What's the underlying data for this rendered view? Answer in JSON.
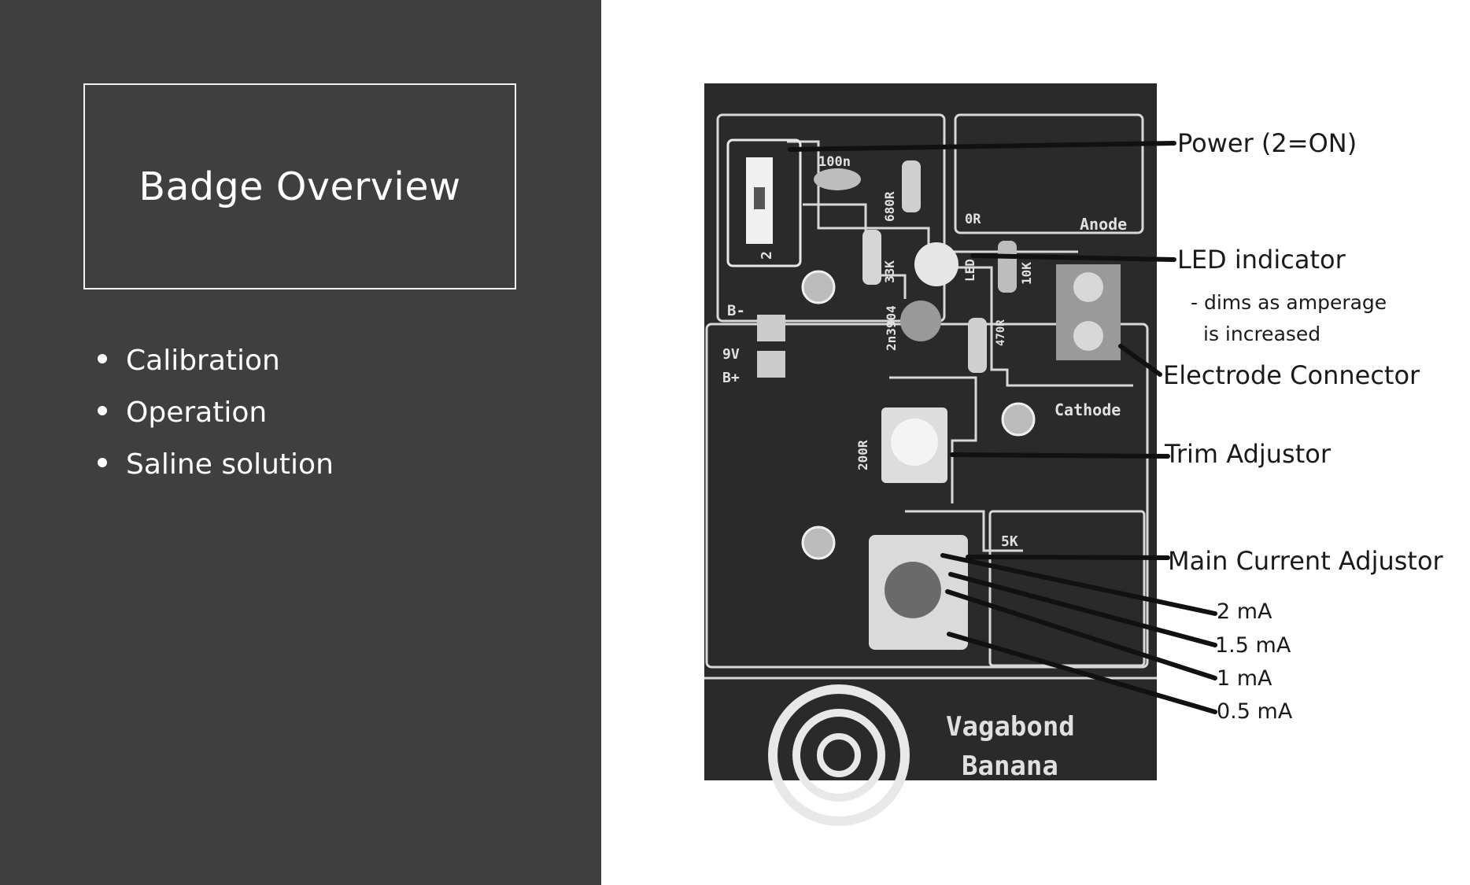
{
  "slide": {
    "title": "Badge Overview",
    "bullets": [
      "Calibration",
      "Operation",
      "Saline solution"
    ]
  },
  "labels": {
    "power": "Power (2=ON)",
    "led": "LED indicator",
    "led_note_1": "- dims as amperage",
    "led_note_2": "is increased",
    "electrode": "Electrode Connector",
    "trim": "Trim Adjustor",
    "main_current": "Main Current Adjustor",
    "settings": [
      "2 mA",
      "1.5 mA",
      "1 mA",
      "0.5 mA"
    ]
  },
  "pcb": {
    "c_100n": "100n",
    "r_680r": "680R",
    "r_0r": "0R",
    "anode": "Anode",
    "r_33k": "33K",
    "led_ref": "LED",
    "r_10k": "10K",
    "b_minus": "B-",
    "v9": "9V",
    "b_plus": "B+",
    "q_2n3904": "2n3904",
    "r_470r": "470R",
    "cathode": "Cathode",
    "r_200r": "200R",
    "pot_5k": "5K",
    "switch_2": "2",
    "brand_1": "Vagabond",
    "brand_2": "Banana"
  },
  "colors": {
    "left_panel": "#3f3f3f",
    "board": "#2a2a2a",
    "callout_line": "#111111"
  }
}
